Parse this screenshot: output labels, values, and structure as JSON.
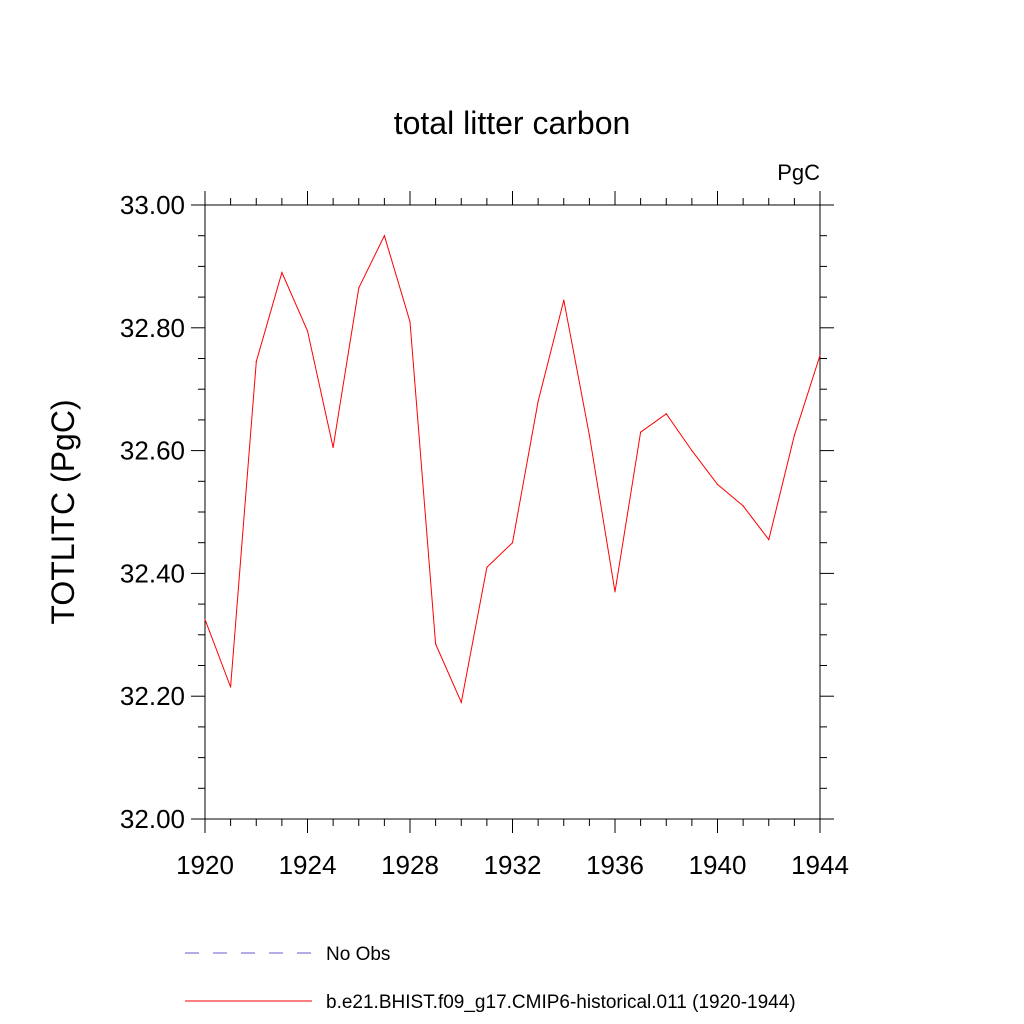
{
  "chart_data": {
    "type": "line",
    "title": "total litter carbon",
    "units": "PgC",
    "ylabel": "TOTLITC  (PgC)",
    "xlabel": "",
    "xlim": [
      1920,
      1944
    ],
    "ylim": [
      32.0,
      33.0
    ],
    "xticks": [
      "1920",
      "1924",
      "1928",
      "1932",
      "1936",
      "1940",
      "1944"
    ],
    "yticks": [
      "32.00",
      "32.20",
      "32.40",
      "32.60",
      "32.80",
      "33.00"
    ],
    "grid": false,
    "legend_position": "bottom",
    "series": [
      {
        "name": "No Obs",
        "color": "#6a5acd",
        "dashed": true,
        "x": [],
        "y": []
      },
      {
        "name": "b.e21.BHIST.f09_g17.CMIP6-historical.011 (1920-1944)",
        "color": "#ff0000",
        "dashed": false,
        "x": [
          1920,
          1921,
          1922,
          1923,
          1924,
          1925,
          1926,
          1927,
          1928,
          1929,
          1930,
          1931,
          1932,
          1933,
          1934,
          1935,
          1936,
          1937,
          1938,
          1939,
          1940,
          1941,
          1942,
          1943,
          1944
        ],
        "y": [
          32.325,
          32.215,
          32.745,
          32.89,
          32.795,
          32.605,
          32.865,
          32.95,
          32.81,
          32.285,
          32.19,
          32.41,
          32.45,
          32.68,
          32.845,
          32.625,
          32.37,
          32.63,
          32.66,
          32.6,
          32.545,
          32.51,
          32.455,
          32.625,
          32.755
        ]
      }
    ]
  }
}
